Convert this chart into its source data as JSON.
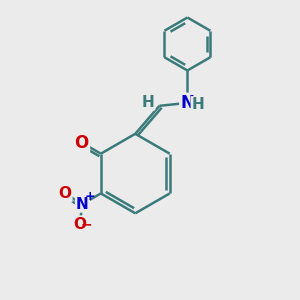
{
  "bg_color": "#ebebeb",
  "bond_color": "#3a7a7a",
  "bond_width": 1.8,
  "atom_colors": {
    "O": "#cc0000",
    "N_blue": "#0000cc",
    "H": "#3a7a7a"
  },
  "figsize": [
    3.0,
    3.0
  ],
  "dpi": 100
}
